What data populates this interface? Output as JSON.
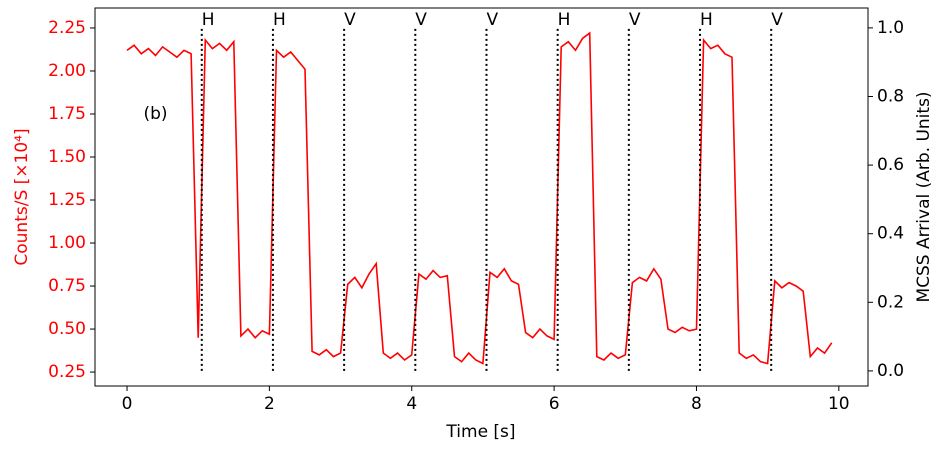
{
  "chart_data": {
    "type": "line",
    "xlabel": "Time [s]",
    "ylabel": "Counts/S [×10⁴]",
    "y2label": "MCSS Arrival (Arb. Units)",
    "annotation": {
      "text": "(b)",
      "x": 0.4,
      "y": 1.75
    },
    "color": "#ff0000",
    "x": [
      0,
      0.1,
      0.2,
      0.3,
      0.4,
      0.5,
      0.6,
      0.7,
      0.8,
      0.9,
      1,
      1.1,
      1.2,
      1.3,
      1.4,
      1.5,
      1.6,
      1.7,
      1.8,
      1.9,
      2,
      2.1,
      2.2,
      2.3,
      2.4,
      2.5,
      2.6,
      2.7,
      2.8,
      2.9,
      3,
      3.1,
      3.2,
      3.3,
      3.4,
      3.5,
      3.6,
      3.7,
      3.8,
      3.9,
      4,
      4.1,
      4.2,
      4.3,
      4.4,
      4.5,
      4.6,
      4.7,
      4.8,
      4.9,
      5,
      5.1,
      5.2,
      5.3,
      5.4,
      5.5,
      5.6,
      5.7,
      5.8,
      5.9,
      6,
      6.1,
      6.2,
      6.3,
      6.4,
      6.5,
      6.6,
      6.7,
      6.8,
      6.9,
      7,
      7.1,
      7.2,
      7.3,
      7.4,
      7.5,
      7.6,
      7.7,
      7.8,
      7.9,
      8,
      8.1,
      8.2,
      8.3,
      8.4,
      8.5,
      8.6,
      8.7,
      8.8,
      8.9,
      9,
      9.1,
      9.2,
      9.3,
      9.4,
      9.5,
      9.6,
      9.7,
      9.8,
      9.9
    ],
    "values": [
      2.12,
      2.15,
      2.1,
      2.13,
      2.09,
      2.14,
      2.11,
      2.08,
      2.12,
      2.1,
      0.45,
      2.18,
      2.13,
      2.16,
      2.12,
      2.17,
      0.46,
      0.5,
      0.45,
      0.49,
      0.47,
      2.12,
      2.08,
      2.11,
      2.06,
      2.01,
      0.37,
      0.35,
      0.38,
      0.34,
      0.36,
      0.76,
      0.8,
      0.74,
      0.82,
      0.88,
      0.36,
      0.33,
      0.36,
      0.32,
      0.35,
      0.82,
      0.79,
      0.84,
      0.8,
      0.81,
      0.34,
      0.31,
      0.36,
      0.32,
      0.3,
      0.83,
      0.8,
      0.85,
      0.78,
      0.76,
      0.48,
      0.45,
      0.5,
      0.46,
      0.44,
      2.14,
      2.17,
      2.12,
      2.19,
      2.22,
      0.34,
      0.32,
      0.36,
      0.33,
      0.35,
      0.77,
      0.8,
      0.78,
      0.85,
      0.79,
      0.5,
      0.48,
      0.51,
      0.49,
      0.5,
      2.18,
      2.13,
      2.15,
      2.1,
      2.08,
      0.36,
      0.33,
      0.35,
      0.31,
      0.3,
      0.78,
      0.74,
      0.77,
      0.75,
      0.72,
      0.34,
      0.39,
      0.36,
      0.42
    ],
    "markers": {
      "axis": "y2",
      "x": [
        1.05,
        2.05,
        3.05,
        4.05,
        5.05,
        6.05,
        7.05,
        8.05,
        9.05
      ],
      "values": [
        1,
        1,
        1,
        1,
        1,
        1,
        1,
        1,
        1
      ],
      "labels": [
        "H",
        "H",
        "V",
        "V",
        "V",
        "H",
        "V",
        "H",
        "V"
      ]
    },
    "xlim": [
      -0.45,
      10.41
    ],
    "xticks": [
      0,
      2,
      4,
      6,
      8,
      10
    ],
    "ylim": [
      0.169,
      2.366
    ],
    "yticks": [
      0.25,
      {
        "value": 0.5,
        "label": "0.50"
      },
      0.75,
      {
        "value": 1,
        "label": "1.00"
      },
      1.25,
      {
        "value": 1.5,
        "label": "1.50"
      },
      1.75,
      {
        "value": 2,
        "label": "2.00"
      },
      2.25
    ],
    "y2lim": [
      -0.044,
      1.058
    ],
    "y2ticks": [
      {
        "value": 0,
        "label": "0.0"
      },
      0.2,
      0.4,
      0.6,
      0.8,
      {
        "value": 1,
        "label": "1.0"
      }
    ]
  }
}
